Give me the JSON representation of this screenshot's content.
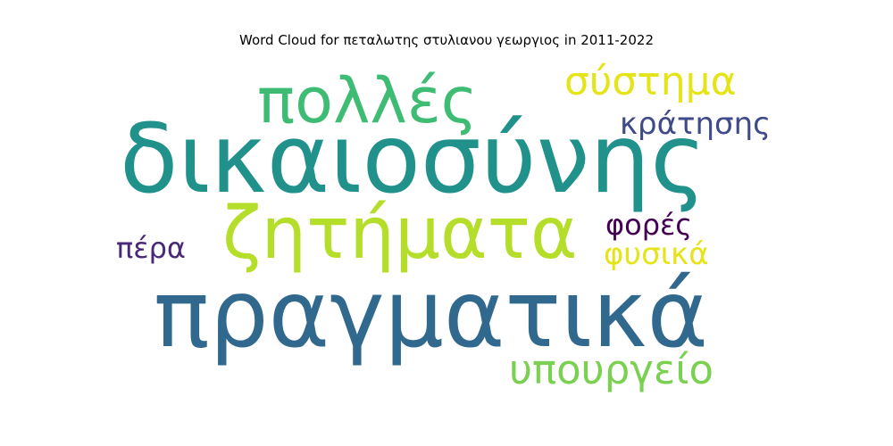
{
  "chart_data": {
    "type": "wordcloud",
    "title": "Word Cloud for πεταλωτης στυλιανου γεωργιος in 2011-2022",
    "words": [
      {
        "text": "δικαιοσύνης",
        "weight": 100,
        "color": "#21918c"
      },
      {
        "text": "πραγματικά",
        "weight": 95,
        "color": "#31688e"
      },
      {
        "text": "ζητήματα",
        "weight": 70,
        "color": "#b5de2b"
      },
      {
        "text": "πολλές",
        "weight": 62,
        "color": "#3fbc73"
      },
      {
        "text": "υπουργείο",
        "weight": 40,
        "color": "#7ad151"
      },
      {
        "text": "σύστημα",
        "weight": 36,
        "color": "#e4e419"
      },
      {
        "text": "κράτησης",
        "weight": 26,
        "color": "#3e4a89"
      },
      {
        "text": "φυσικά",
        "weight": 26,
        "color": "#e5e419"
      },
      {
        "text": "πέρα",
        "weight": 24,
        "color": "#482878"
      },
      {
        "text": "φορές",
        "weight": 24,
        "color": "#440154"
      }
    ]
  }
}
